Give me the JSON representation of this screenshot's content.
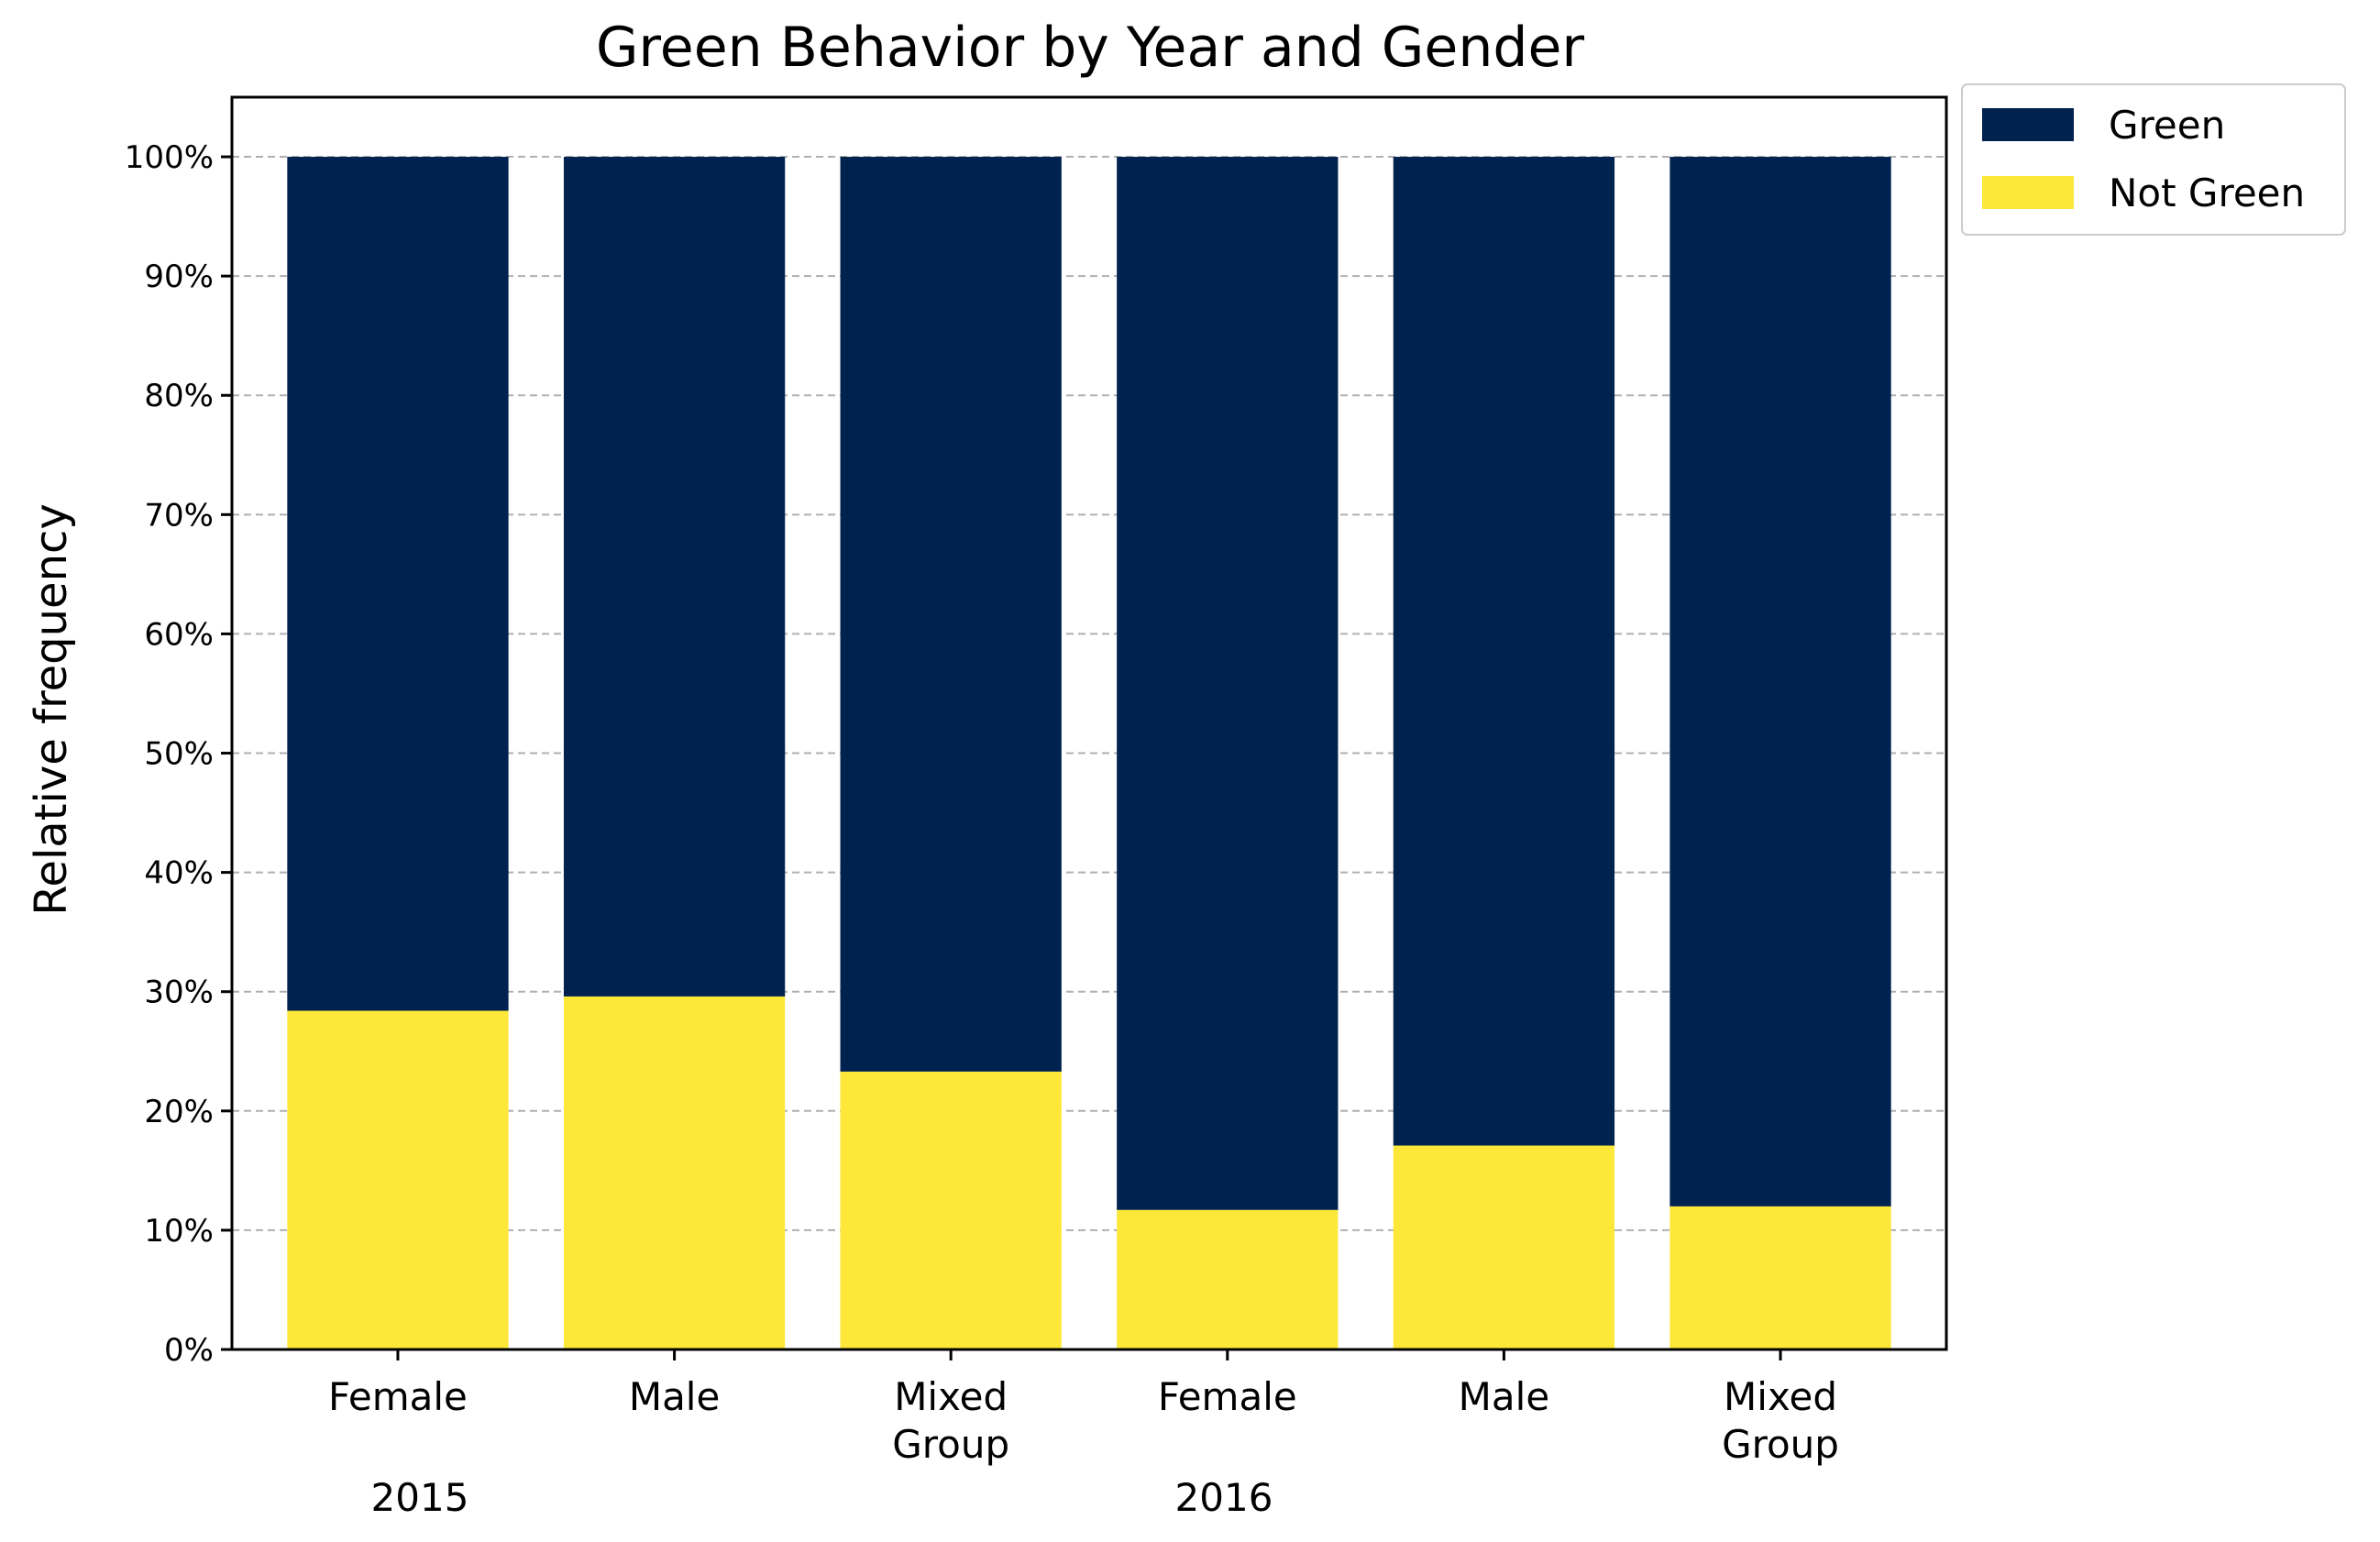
{
  "chart_data": {
    "type": "bar",
    "stacked": true,
    "title": "Green Behavior by Year and Gender",
    "xlabel": "",
    "ylabel": "Relative frequency",
    "ylim": [
      0,
      105
    ],
    "yticks": [
      0,
      10,
      20,
      30,
      40,
      50,
      60,
      70,
      80,
      90,
      100
    ],
    "ytick_labels": [
      "0%",
      "10%",
      "20%",
      "30%",
      "40%",
      "50%",
      "60%",
      "70%",
      "80%",
      "90%",
      "100%"
    ],
    "grid": "horizontal dashed",
    "legend_position": "outside top-right",
    "categories": [
      [
        "Female"
      ],
      [
        "Male"
      ],
      [
        "Mixed",
        "Group"
      ],
      [
        "Female"
      ],
      [
        "Male"
      ],
      [
        "Mixed",
        "Group"
      ]
    ],
    "groups": [
      {
        "label": "2015",
        "span": [
          0,
          2
        ]
      },
      {
        "label": "2016",
        "span": [
          3,
          5
        ]
      }
    ],
    "series": [
      {
        "name": "Not Green",
        "color": "#fde83a",
        "values": [
          28.4,
          29.6,
          23.3,
          11.7,
          17.1,
          12.0
        ]
      },
      {
        "name": "Green",
        "color": "#00224e",
        "values": [
          71.6,
          70.4,
          76.7,
          88.3,
          82.9,
          88.0
        ]
      }
    ],
    "legend_order": [
      "Green",
      "Not Green"
    ]
  }
}
